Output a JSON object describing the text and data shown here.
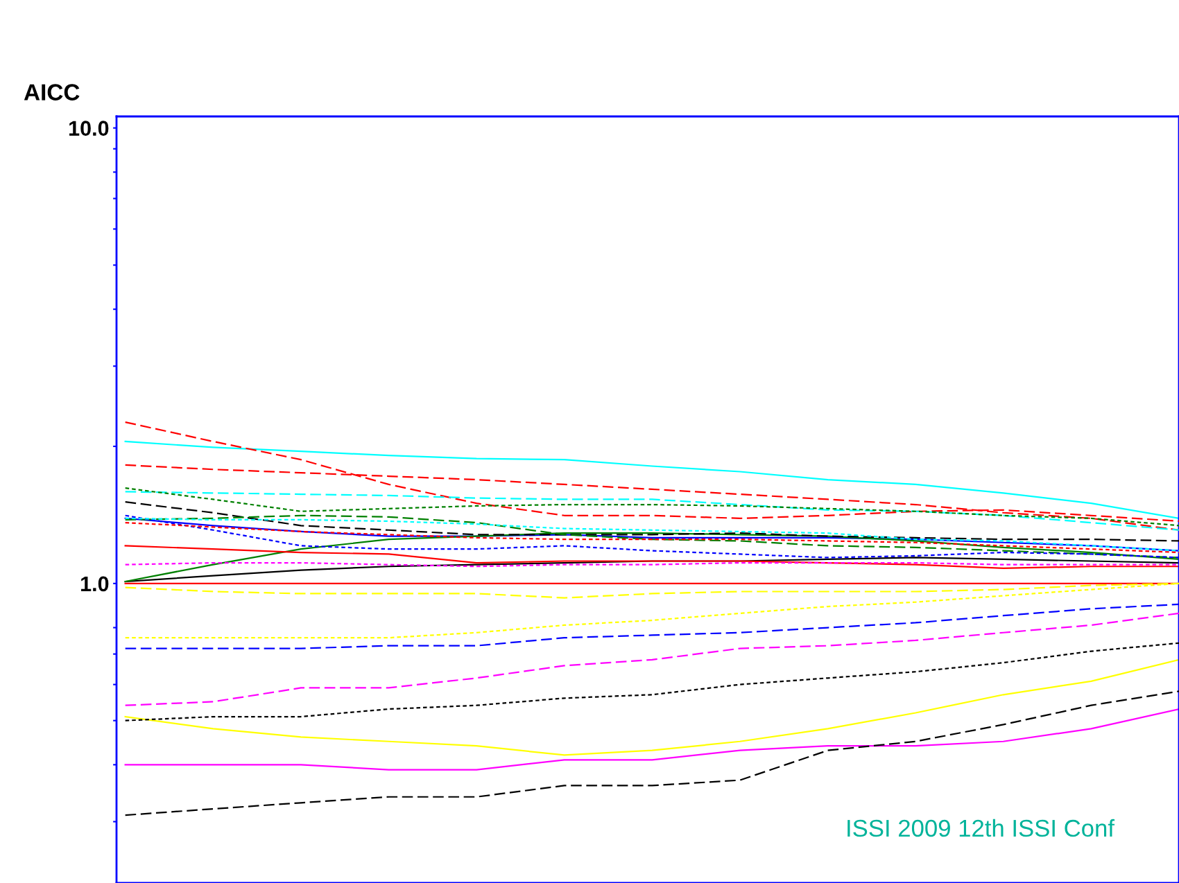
{
  "chart_data": {
    "type": "line",
    "ylabel": "AICC",
    "log": "y",
    "grid": false,
    "legend": false,
    "ylim": [
      0.22,
      10.6
    ],
    "yticks": [
      {
        "value": 0.3,
        "label": null
      },
      {
        "value": 0.4,
        "label": null
      },
      {
        "value": 0.5,
        "label": null
      },
      {
        "value": 0.6,
        "label": null
      },
      {
        "value": 0.7,
        "label": null
      },
      {
        "value": 0.8,
        "label": null
      },
      {
        "value": 1.0,
        "label": "1.0"
      },
      {
        "value": 2,
        "label": null
      },
      {
        "value": 3,
        "label": null
      },
      {
        "value": 4,
        "label": null
      },
      {
        "value": 5,
        "label": null
      },
      {
        "value": 6,
        "label": null
      },
      {
        "value": 7,
        "label": null
      },
      {
        "value": 8,
        "label": null
      },
      {
        "value": 9,
        "label": null
      },
      {
        "value": 10,
        "label": "10.0"
      }
    ],
    "categories": [
      null,
      null,
      null,
      null,
      null,
      null,
      null,
      null,
      null,
      null,
      null,
      null,
      null
    ],
    "annotations": [
      "ISSI 2009 12th ISSI Conf"
    ],
    "series": [
      {
        "color": "#ff0000",
        "line_style": "dashed",
        "values": [
          2.26,
          2.05,
          1.87,
          1.65,
          1.5,
          1.41,
          1.41,
          1.39,
          1.41,
          1.44,
          1.45,
          1.41,
          1.37
        ]
      },
      {
        "color": "#00ffff",
        "line_style": "solid",
        "values": [
          2.05,
          1.99,
          1.95,
          1.91,
          1.88,
          1.87,
          1.81,
          1.76,
          1.69,
          1.65,
          1.58,
          1.5,
          1.39
        ]
      },
      {
        "color": "#ff0000",
        "line_style": "dashed",
        "values": [
          1.82,
          1.78,
          1.75,
          1.72,
          1.69,
          1.65,
          1.61,
          1.57,
          1.53,
          1.49,
          1.43,
          1.39,
          1.31
        ]
      },
      {
        "color": "#008000",
        "line_style": "dotted",
        "values": [
          1.62,
          1.53,
          1.44,
          1.46,
          1.48,
          1.49,
          1.49,
          1.48,
          1.46,
          1.44,
          1.41,
          1.39,
          1.34
        ]
      },
      {
        "color": "#00ffff",
        "line_style": "dashed",
        "values": [
          1.59,
          1.58,
          1.57,
          1.56,
          1.54,
          1.53,
          1.53,
          1.49,
          1.45,
          1.44,
          1.41,
          1.36,
          1.31
        ]
      },
      {
        "color": "#000000",
        "line_style": "dashed",
        "values": [
          1.51,
          1.43,
          1.34,
          1.31,
          1.28,
          1.28,
          1.28,
          1.29,
          1.27,
          1.26,
          1.25,
          1.25,
          1.24
        ]
      },
      {
        "color": "#0000ff",
        "line_style": "dotted",
        "values": [
          1.41,
          1.31,
          1.21,
          1.19,
          1.19,
          1.21,
          1.18,
          1.16,
          1.14,
          1.15,
          1.17,
          1.16,
          1.14
        ]
      },
      {
        "color": "#008000",
        "line_style": "dashed",
        "values": [
          1.38,
          1.39,
          1.41,
          1.4,
          1.36,
          1.28,
          1.25,
          1.24,
          1.21,
          1.2,
          1.18,
          1.16,
          1.14
        ]
      },
      {
        "color": "#00ffff",
        "line_style": "dotted",
        "values": [
          1.39,
          1.38,
          1.38,
          1.37,
          1.35,
          1.32,
          1.31,
          1.3,
          1.29,
          1.25,
          1.24,
          1.21,
          1.18
        ]
      },
      {
        "color": "#0000ff",
        "line_style": "solid",
        "values": [
          1.39,
          1.34,
          1.3,
          1.27,
          1.27,
          1.28,
          1.26,
          1.26,
          1.26,
          1.25,
          1.23,
          1.21,
          1.18
        ]
      },
      {
        "color": "#ff0000",
        "line_style": "dotted",
        "values": [
          1.36,
          1.33,
          1.3,
          1.28,
          1.26,
          1.25,
          1.25,
          1.25,
          1.24,
          1.23,
          1.21,
          1.19,
          1.17
        ]
      },
      {
        "color": "#000000",
        "line_style": "solid",
        "values": [
          1.01,
          1.04,
          1.07,
          1.09,
          1.1,
          1.11,
          1.12,
          1.12,
          1.13,
          1.14,
          1.13,
          1.12,
          1.11
        ]
      },
      {
        "color": "#008000",
        "line_style": "solid",
        "values": [
          1.01,
          1.1,
          1.19,
          1.25,
          1.27,
          1.29,
          1.29,
          1.28,
          1.27,
          1.24,
          1.2,
          1.17,
          1.13
        ]
      },
      {
        "color": "#ff0000",
        "line_style": "solid",
        "values": [
          1.21,
          1.19,
          1.17,
          1.16,
          1.11,
          1.12,
          1.12,
          1.12,
          1.11,
          1.1,
          1.08,
          1.09,
          1.09
        ]
      },
      {
        "color": "#ff00ff",
        "line_style": "dotted",
        "values": [
          1.1,
          1.11,
          1.11,
          1.1,
          1.09,
          1.1,
          1.1,
          1.11,
          1.11,
          1.11,
          1.1,
          1.1,
          1.1
        ]
      },
      {
        "color": "#ff0000",
        "line_style": "solid",
        "values": [
          1.0,
          1.0,
          1.0,
          1.0,
          1.0,
          1.0,
          1.0,
          1.0,
          1.0,
          1.0,
          1.0,
          1.0,
          1.0
        ]
      },
      {
        "color": "#ffff00",
        "line_style": "dashed",
        "values": [
          0.98,
          0.96,
          0.95,
          0.95,
          0.95,
          0.93,
          0.95,
          0.96,
          0.96,
          0.96,
          0.97,
          0.99,
          1.0
        ]
      },
      {
        "color": "#ffff00",
        "line_style": "dotted",
        "values": [
          0.76,
          0.76,
          0.76,
          0.76,
          0.78,
          0.81,
          0.83,
          0.86,
          0.89,
          0.91,
          0.94,
          0.97,
          1.0
        ]
      },
      {
        "color": "#0000ff",
        "line_style": "dashed",
        "values": [
          0.72,
          0.72,
          0.72,
          0.73,
          0.73,
          0.76,
          0.77,
          0.78,
          0.8,
          0.82,
          0.85,
          0.88,
          0.9
        ]
      },
      {
        "color": "#ff00ff",
        "line_style": "dashed",
        "values": [
          0.54,
          0.55,
          0.59,
          0.59,
          0.62,
          0.66,
          0.68,
          0.72,
          0.73,
          0.75,
          0.78,
          0.81,
          0.86
        ]
      },
      {
        "color": "#000000",
        "line_style": "dotted",
        "values": [
          0.5,
          0.51,
          0.51,
          0.53,
          0.54,
          0.56,
          0.57,
          0.6,
          0.62,
          0.64,
          0.67,
          0.71,
          0.74
        ]
      },
      {
        "color": "#ffff00",
        "line_style": "solid",
        "values": [
          0.51,
          0.48,
          0.46,
          0.45,
          0.44,
          0.42,
          0.43,
          0.45,
          0.48,
          0.52,
          0.57,
          0.61,
          0.68
        ]
      },
      {
        "color": "#ff00ff",
        "line_style": "solid",
        "values": [
          0.4,
          0.4,
          0.4,
          0.39,
          0.39,
          0.41,
          0.41,
          0.43,
          0.44,
          0.44,
          0.45,
          0.48,
          0.53
        ]
      },
      {
        "color": "#000000",
        "line_style": "dashed",
        "values": [
          0.31,
          0.32,
          0.33,
          0.34,
          0.34,
          0.36,
          0.36,
          0.37,
          0.43,
          0.45,
          0.49,
          0.54,
          0.58
        ]
      }
    ]
  }
}
